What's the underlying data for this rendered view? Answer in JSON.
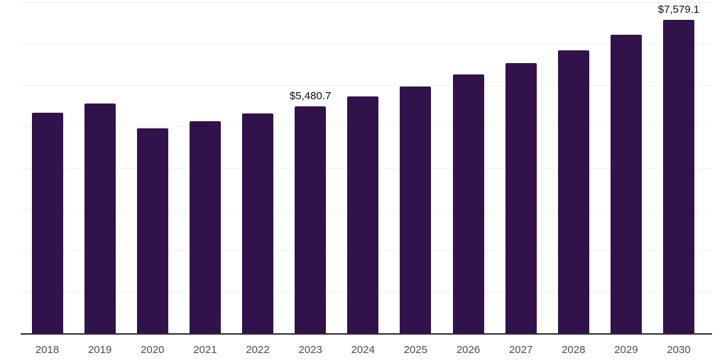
{
  "chart_data": {
    "type": "bar",
    "title": "",
    "xlabel": "",
    "ylabel": "",
    "categories": [
      "2018",
      "2019",
      "2020",
      "2021",
      "2022",
      "2023",
      "2024",
      "2025",
      "2026",
      "2027",
      "2028",
      "2029",
      "2030"
    ],
    "values": [
      5330,
      5550,
      4950,
      5125,
      5310,
      5480.7,
      5720,
      5960,
      6250,
      6525,
      6835,
      7210,
      7579.1
    ],
    "value_labels": {
      "2023": "$5,480.7",
      "2030": "$7,579.1"
    },
    "ylim": [
      0,
      8000
    ],
    "gridline_interval": 1000,
    "grid": true,
    "legend": false,
    "y_axis_labels_visible": false,
    "colors": {
      "bar": "#31124B",
      "gridline": "#f2f2f2",
      "axis": "#2f2f2f",
      "tick_label": "#4d4d4f",
      "value_label": "#0d0d0d",
      "background": "#ffffff"
    }
  }
}
